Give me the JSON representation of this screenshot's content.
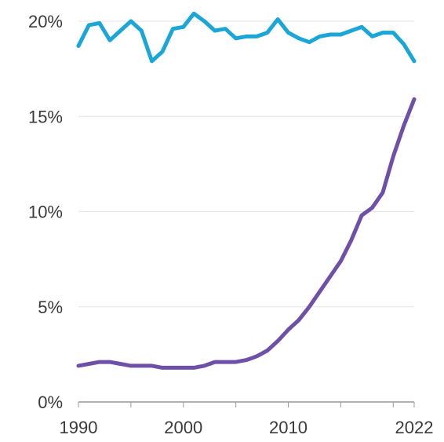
{
  "chart_data": {
    "type": "line",
    "title": "",
    "xlabel": "",
    "ylabel": "",
    "xlim": [
      1990,
      2022
    ],
    "ylim": [
      0,
      20
    ],
    "grid": true,
    "legend": "none",
    "y_ticks": [
      {
        "value": 0,
        "label": "0%"
      },
      {
        "value": 5,
        "label": "5%"
      },
      {
        "value": 10,
        "label": "10%"
      },
      {
        "value": 15,
        "label": "15%"
      },
      {
        "value": 20,
        "label": "20%"
      }
    ],
    "x_ticks_labeled": [
      {
        "value": 1990,
        "label": "1990"
      },
      {
        "value": 2000,
        "label": "2000"
      },
      {
        "value": 2010,
        "label": "2010"
      },
      {
        "value": 2022,
        "label": "2022"
      }
    ],
    "x_ticks_minor": [
      1995,
      2005,
      2015,
      2020
    ],
    "x": [
      1990,
      1991,
      1992,
      1993,
      1994,
      1995,
      1996,
      1997,
      1998,
      1999,
      2000,
      2001,
      2002,
      2003,
      2004,
      2005,
      2006,
      2007,
      2008,
      2009,
      2010,
      2011,
      2012,
      2013,
      2014,
      2015,
      2016,
      2017,
      2018,
      2019,
      2020,
      2021,
      2022
    ],
    "series": [
      {
        "color": "#1aa6d6",
        "values": [
          18.7,
          19.8,
          19.9,
          19.0,
          19.5,
          20.0,
          19.5,
          17.9,
          18.4,
          19.6,
          19.7,
          20.4,
          20.0,
          19.5,
          19.6,
          19.1,
          19.2,
          19.2,
          19.4,
          20.1,
          19.4,
          19.1,
          18.9,
          19.2,
          19.3,
          19.3,
          19.5,
          19.7,
          19.2,
          19.4,
          19.4,
          18.8,
          17.9
        ]
      },
      {
        "color": "#6f50a8",
        "values": [
          1.9,
          2.0,
          2.1,
          2.1,
          2.0,
          1.9,
          1.9,
          1.9,
          1.8,
          1.8,
          1.8,
          1.8,
          1.9,
          2.1,
          2.1,
          2.1,
          2.2,
          2.4,
          2.7,
          3.2,
          3.8,
          4.3,
          5.0,
          5.8,
          6.6,
          7.4,
          8.5,
          9.8,
          10.2,
          11.0,
          12.9,
          14.5,
          15.9
        ]
      }
    ]
  }
}
